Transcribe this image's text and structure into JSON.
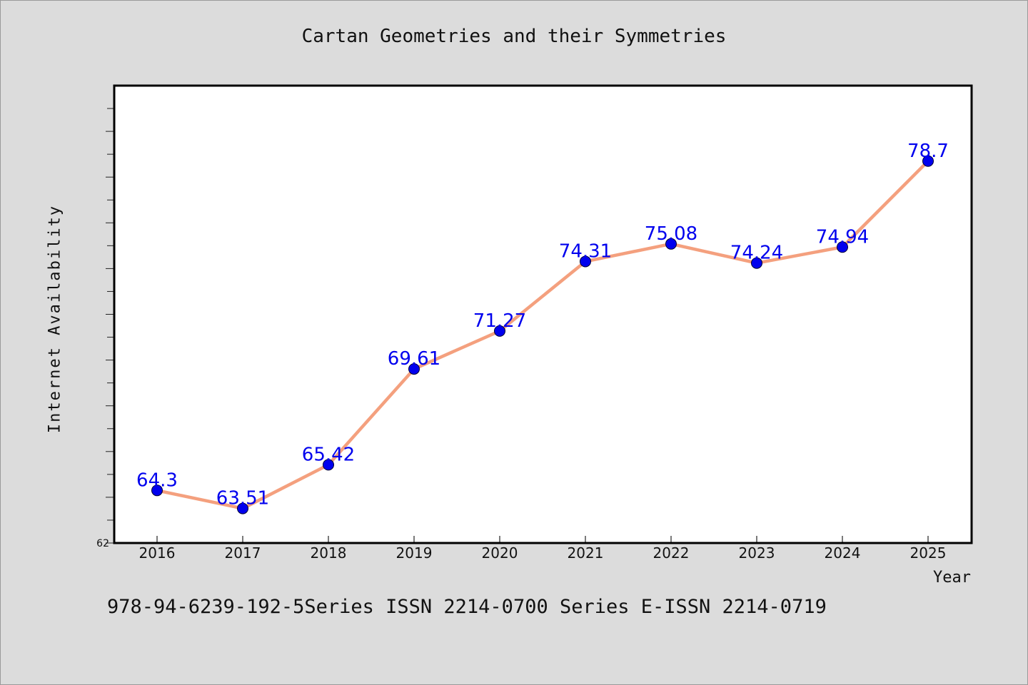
{
  "chart_data": {
    "type": "line",
    "title": "Cartan Geometries and their Symmetries",
    "xlabel": "Year",
    "ylabel": "Internet Availability",
    "x": [
      "2016",
      "2017",
      "2018",
      "2019",
      "2020",
      "2021",
      "2022",
      "2023",
      "2024",
      "2025"
    ],
    "series": [
      {
        "values": [
          64.3,
          63.51,
          65.42,
          69.61,
          71.27,
          74.31,
          75.08,
          74.24,
          74.94,
          78.7
        ],
        "data_labels": [
          "64.3",
          "63.51",
          "65.42",
          "69.61",
          "71.27",
          "74.31",
          "75.08",
          "74.24",
          "74.94",
          "78.7"
        ]
      }
    ],
    "ylim": [
      62,
      82
    ],
    "y_tick_labels": [
      "62"
    ],
    "grid": false,
    "legend": "none",
    "colors": {
      "line": "#f4a07e",
      "marker": "#0000ee",
      "data_label": "#0000ee",
      "background": "#dcdcdc",
      "plot_background": "#ffffff"
    }
  },
  "footer": {
    "text": "978-94-6239-192-5Series ISSN 2214-0700 Series E-ISSN 2214-0719"
  }
}
